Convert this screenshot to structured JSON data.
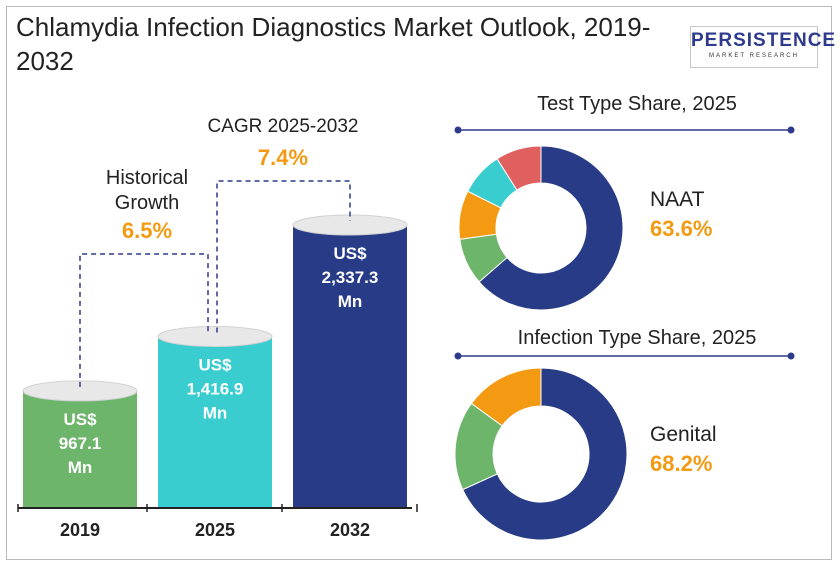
{
  "title": "Chlamydia Infection Diagnostics Market Outlook, 2019-2032",
  "logo": {
    "name": "PERSISTENCE",
    "tagline": "MARKET RESEARCH"
  },
  "colors": {
    "green": "#6cb56a",
    "teal": "#39cdd0",
    "navy": "#283b86",
    "orange": "#f39a12",
    "red": "#e0605f",
    "text": "#222222"
  },
  "chart_data": [
    {
      "type": "bar",
      "categories": [
        "2019",
        "2025",
        "2032"
      ],
      "values": [
        967.1,
        1416.9,
        2337.3
      ],
      "value_labels": [
        [
          "US$",
          "967.1",
          "Mn"
        ],
        [
          "US$",
          "1,416.9",
          "Mn"
        ],
        [
          "US$",
          "2,337.3",
          "Mn"
        ]
      ],
      "annotations": {
        "historical": {
          "label_lines": [
            "Historical",
            "Growth"
          ],
          "value": "6.5%"
        },
        "cagr": {
          "label": "CAGR 2025-2032",
          "value": "7.4%"
        }
      }
    },
    {
      "type": "pie",
      "title": "Test Type Share, 2025",
      "highlight": {
        "label": "NAAT",
        "value": "63.6%"
      },
      "slices": [
        {
          "label": "NAAT",
          "value": 63.6,
          "color": "#283b86"
        },
        {
          "value": 9.2,
          "color": "#6cb56a"
        },
        {
          "value": 9.6,
          "color": "#f39a12"
        },
        {
          "value": 8.6,
          "color": "#39cdd0"
        },
        {
          "value": 9.0,
          "color": "#e0605f"
        }
      ]
    },
    {
      "type": "pie",
      "title": "Infection Type Share, 2025",
      "highlight": {
        "label": "Genital",
        "value": "68.2%"
      },
      "slices": [
        {
          "label": "Genital",
          "value": 68.2,
          "color": "#283b86"
        },
        {
          "value": 16.8,
          "color": "#6cb56a"
        },
        {
          "value": 15.0,
          "color": "#f39a12"
        }
      ]
    }
  ]
}
